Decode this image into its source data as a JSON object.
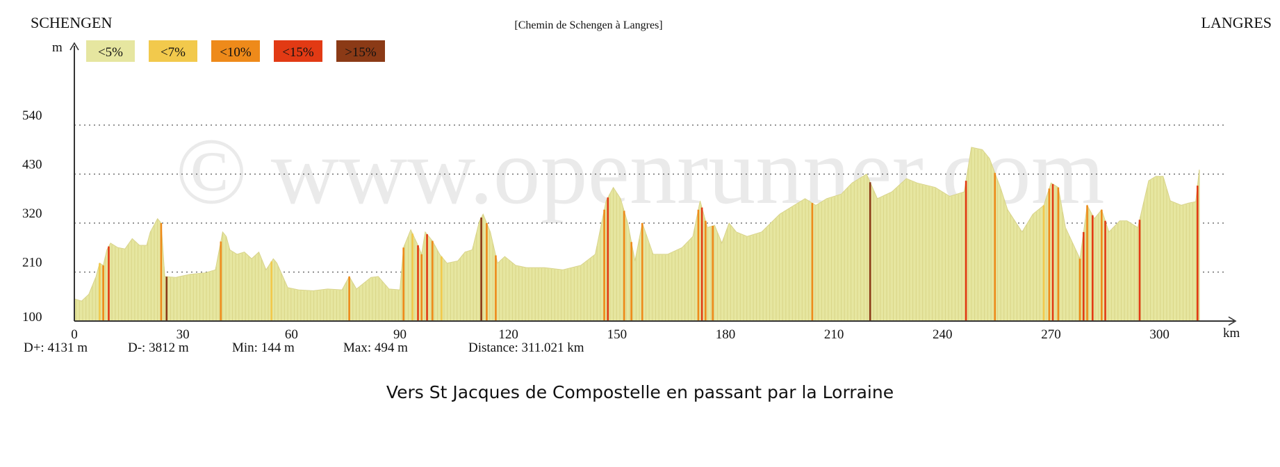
{
  "header": {
    "start": "SCHENGEN",
    "route": "[Chemin de Schengen à Langres]",
    "end": "LANGRES"
  },
  "watermark": "© www.openrunner.com",
  "caption": "Vers St Jacques de Compostelle en passant par la Lorraine",
  "stats": {
    "d_plus": "D+: 4131 m",
    "d_minus": "D-: 3812 m",
    "min": "Min: 144 m",
    "max": "Max: 494 m",
    "distance": "Distance: 311.021 km"
  },
  "colors": {
    "lt5": "#e6e6a0",
    "lt7": "#f2c94c",
    "lt10": "#ee8a1a",
    "lt15": "#e23a14",
    "gt15": "#8b3a16",
    "grid": "#555555",
    "axis": "#333333"
  },
  "chart_data": {
    "type": "area",
    "xlabel": "km",
    "ylabel": "m",
    "xlim": [
      0,
      311.021
    ],
    "ylim": [
      100,
      540
    ],
    "x_ticks": [
      "0",
      "30",
      "60",
      "90",
      "120",
      "150",
      "180",
      "210",
      "240",
      "270",
      "300"
    ],
    "y_ticks": [
      "100",
      "210",
      "320",
      "430",
      "540"
    ],
    "grid": true,
    "legend_position": "top-left",
    "legend": [
      {
        "label": "<5%",
        "color_key": "lt5"
      },
      {
        "label": "<7%",
        "color_key": "lt7"
      },
      {
        "label": "<10%",
        "color_key": "lt10"
      },
      {
        "label": "<15%",
        "color_key": "lt15"
      },
      {
        "label": ">15%",
        "color_key": "gt15"
      }
    ],
    "profile": [
      [
        0,
        150
      ],
      [
        2,
        145
      ],
      [
        4,
        160
      ],
      [
        6,
        200
      ],
      [
        7,
        230
      ],
      [
        8,
        225
      ],
      [
        9,
        260
      ],
      [
        10,
        275
      ],
      [
        12,
        265
      ],
      [
        14,
        262
      ],
      [
        16,
        285
      ],
      [
        18,
        270
      ],
      [
        20,
        270
      ],
      [
        21,
        300
      ],
      [
        23,
        330
      ],
      [
        24,
        320
      ],
      [
        25,
        200
      ],
      [
        28,
        198
      ],
      [
        32,
        205
      ],
      [
        36,
        208
      ],
      [
        39,
        215
      ],
      [
        41,
        300
      ],
      [
        42,
        290
      ],
      [
        43,
        260
      ],
      [
        45,
        250
      ],
      [
        47,
        255
      ],
      [
        49,
        240
      ],
      [
        51,
        255
      ],
      [
        53,
        215
      ],
      [
        55,
        240
      ],
      [
        56,
        230
      ],
      [
        59,
        175
      ],
      [
        62,
        170
      ],
      [
        66,
        168
      ],
      [
        70,
        172
      ],
      [
        74,
        170
      ],
      [
        76,
        200
      ],
      [
        78,
        172
      ],
      [
        82,
        198
      ],
      [
        84,
        200
      ],
      [
        87,
        172
      ],
      [
        90,
        170
      ],
      [
        91,
        265
      ],
      [
        93,
        305
      ],
      [
        95,
        270
      ],
      [
        96,
        250
      ],
      [
        97,
        300
      ],
      [
        99,
        280
      ],
      [
        101,
        250
      ],
      [
        103,
        230
      ],
      [
        106,
        235
      ],
      [
        108,
        255
      ],
      [
        110,
        260
      ],
      [
        112,
        325
      ],
      [
        113,
        340
      ],
      [
        115,
        300
      ],
      [
        117,
        230
      ],
      [
        119,
        245
      ],
      [
        122,
        225
      ],
      [
        125,
        220
      ],
      [
        130,
        220
      ],
      [
        135,
        215
      ],
      [
        140,
        225
      ],
      [
        144,
        250
      ],
      [
        147,
        370
      ],
      [
        149,
        400
      ],
      [
        151,
        375
      ],
      [
        153,
        320
      ],
      [
        155,
        235
      ],
      [
        157,
        320
      ],
      [
        160,
        250
      ],
      [
        164,
        250
      ],
      [
        168,
        265
      ],
      [
        171,
        290
      ],
      [
        173,
        370
      ],
      [
        175,
        310
      ],
      [
        177,
        315
      ],
      [
        179,
        275
      ],
      [
        181,
        320
      ],
      [
        183,
        300
      ],
      [
        186,
        290
      ],
      [
        190,
        300
      ],
      [
        195,
        340
      ],
      [
        198,
        355
      ],
      [
        202,
        375
      ],
      [
        205,
        360
      ],
      [
        208,
        375
      ],
      [
        212,
        385
      ],
      [
        215,
        410
      ],
      [
        219,
        430
      ],
      [
        222,
        375
      ],
      [
        226,
        390
      ],
      [
        230,
        420
      ],
      [
        233,
        410
      ],
      [
        238,
        400
      ],
      [
        242,
        380
      ],
      [
        246,
        390
      ],
      [
        248,
        490
      ],
      [
        251,
        485
      ],
      [
        253,
        465
      ],
      [
        256,
        400
      ],
      [
        258,
        350
      ],
      [
        262,
        300
      ],
      [
        265,
        340
      ],
      [
        268,
        360
      ],
      [
        270,
        410
      ],
      [
        272,
        400
      ],
      [
        274,
        310
      ],
      [
        276,
        275
      ],
      [
        278,
        240
      ],
      [
        280,
        360
      ],
      [
        282,
        330
      ],
      [
        284,
        350
      ],
      [
        286,
        300
      ],
      [
        289,
        325
      ],
      [
        291,
        325
      ],
      [
        294,
        310
      ],
      [
        297,
        415
      ],
      [
        299,
        425
      ],
      [
        301,
        425
      ],
      [
        303,
        370
      ],
      [
        306,
        360
      ],
      [
        308,
        365
      ],
      [
        310,
        368
      ],
      [
        311,
        440
      ]
    ],
    "steep_segments": [
      {
        "km": 7,
        "grade": "<7%"
      },
      {
        "km": 8,
        "grade": "<10%"
      },
      {
        "km": 9.5,
        "grade": "<15%"
      },
      {
        "km": 24,
        "grade": "<10%"
      },
      {
        "km": 25.5,
        "grade": ">15%"
      },
      {
        "km": 40.5,
        "grade": "<10%"
      },
      {
        "km": 54.5,
        "grade": "<7%"
      },
      {
        "km": 76,
        "grade": "<10%"
      },
      {
        "km": 91,
        "grade": "<10%"
      },
      {
        "km": 93.5,
        "grade": "<7%"
      },
      {
        "km": 95,
        "grade": "<15%"
      },
      {
        "km": 96,
        "grade": "<10%"
      },
      {
        "km": 97.5,
        "grade": "<15%"
      },
      {
        "km": 99,
        "grade": "<10%"
      },
      {
        "km": 101.5,
        "grade": "<7%"
      },
      {
        "km": 112.5,
        "grade": ">15%"
      },
      {
        "km": 114,
        "grade": "<10%"
      },
      {
        "km": 116.5,
        "grade": "<10%"
      },
      {
        "km": 146.5,
        "grade": "<10%"
      },
      {
        "km": 147.5,
        "grade": "<15%"
      },
      {
        "km": 152,
        "grade": "<10%"
      },
      {
        "km": 154,
        "grade": "<10%"
      },
      {
        "km": 157,
        "grade": "<10%"
      },
      {
        "km": 172.5,
        "grade": "<10%"
      },
      {
        "km": 173.5,
        "grade": "<15%"
      },
      {
        "km": 174.5,
        "grade": "<10%"
      },
      {
        "km": 176.5,
        "grade": "<10%"
      },
      {
        "km": 204,
        "grade": "<10%"
      },
      {
        "km": 220,
        "grade": ">15%"
      },
      {
        "km": 246.5,
        "grade": "<15%"
      },
      {
        "km": 254.5,
        "grade": "<10%"
      },
      {
        "km": 268,
        "grade": "<7%"
      },
      {
        "km": 269.5,
        "grade": "<10%"
      },
      {
        "km": 270.5,
        "grade": "<15%"
      },
      {
        "km": 272,
        "grade": "<10%"
      },
      {
        "km": 278,
        "grade": "<10%"
      },
      {
        "km": 279,
        "grade": "<15%"
      },
      {
        "km": 280,
        "grade": "<10%"
      },
      {
        "km": 281.5,
        "grade": "<15%"
      },
      {
        "km": 284,
        "grade": "<10%"
      },
      {
        "km": 285,
        "grade": "<15%"
      },
      {
        "km": 294.5,
        "grade": "<15%"
      },
      {
        "km": 310.5,
        "grade": "<15%"
      }
    ]
  }
}
